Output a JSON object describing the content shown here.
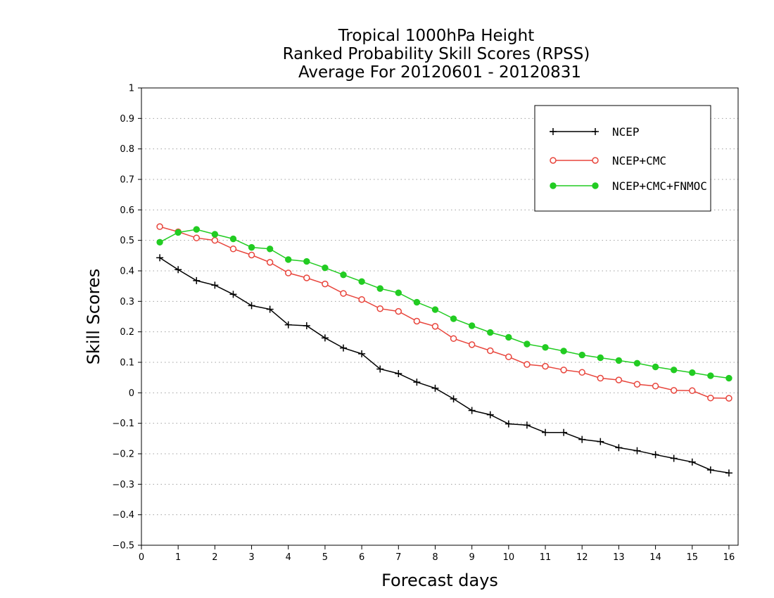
{
  "chart_data": {
    "type": "line",
    "title": [
      "Tropical 1000hPa Height",
      "Ranked Probability Skill Scores (RPSS)",
      "Average For 20120601 - 20120831"
    ],
    "xlabel": "Forecast days",
    "ylabel": "Skill Scores",
    "xlim": [
      0,
      16.25
    ],
    "ylim": [
      -0.5,
      1
    ],
    "xticks": [
      "0",
      "1",
      "2",
      "3",
      "4",
      "5",
      "6",
      "7",
      "8",
      "9",
      "10",
      "11",
      "12",
      "13",
      "14",
      "15",
      "16"
    ],
    "yticks": [
      "1",
      "0.9",
      "0.8",
      "0.7",
      "0.6",
      "0.5",
      "0.4",
      "0.3",
      "0.2",
      "0.1",
      "0",
      "−0.1",
      "−0.2",
      "−0.3",
      "−0.4",
      "−0.5"
    ],
    "grid": "horizontal-dotted",
    "legend_position": "top-right",
    "x": [
      0.5,
      1,
      1.5,
      2,
      2.5,
      3,
      3.5,
      4,
      4.5,
      5,
      5.5,
      6,
      6.5,
      7,
      7.5,
      8,
      8.5,
      9,
      9.5,
      10,
      10.5,
      11,
      11.5,
      12,
      12.5,
      13,
      13.5,
      14,
      14.5,
      15,
      15.5,
      16
    ],
    "series": [
      {
        "name": "NCEP",
        "color": "#000000",
        "marker": "plus",
        "values": [
          0.443,
          0.404,
          0.368,
          0.353,
          0.323,
          0.286,
          0.274,
          0.223,
          0.22,
          0.18,
          0.147,
          0.128,
          0.078,
          0.063,
          0.035,
          0.015,
          -0.02,
          -0.058,
          -0.072,
          -0.102,
          -0.106,
          -0.13,
          -0.13,
          -0.153,
          -0.16,
          -0.18,
          -0.19,
          -0.203,
          -0.215,
          -0.227,
          -0.253,
          -0.263
        ]
      },
      {
        "name": "NCEP+CMC",
        "color": "#e8453c",
        "marker": "open-circle",
        "values": [
          0.545,
          0.528,
          0.508,
          0.5,
          0.472,
          0.452,
          0.428,
          0.393,
          0.377,
          0.357,
          0.326,
          0.306,
          0.276,
          0.267,
          0.235,
          0.218,
          0.178,
          0.158,
          0.138,
          0.118,
          0.093,
          0.087,
          0.075,
          0.067,
          0.048,
          0.042,
          0.028,
          0.022,
          0.008,
          0.007,
          -0.017,
          -0.018
        ]
      },
      {
        "name": "NCEP+CMC+FNMOC",
        "color": "#22cc22",
        "marker": "filled-circle",
        "values": [
          0.494,
          0.526,
          0.536,
          0.52,
          0.505,
          0.477,
          0.472,
          0.437,
          0.431,
          0.41,
          0.387,
          0.365,
          0.342,
          0.328,
          0.297,
          0.273,
          0.243,
          0.22,
          0.198,
          0.182,
          0.16,
          0.149,
          0.137,
          0.124,
          0.115,
          0.106,
          0.097,
          0.085,
          0.075,
          0.066,
          0.056,
          0.048
        ]
      }
    ]
  }
}
